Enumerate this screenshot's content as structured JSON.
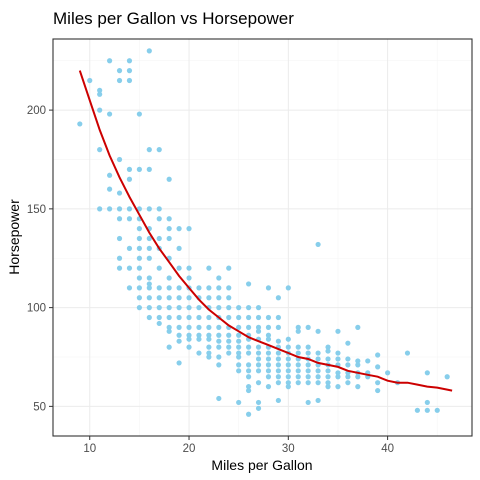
{
  "chart_data": {
    "type": "scatter",
    "title": "Miles per Gallon vs Horsepower",
    "xlabel": "Miles per Gallon",
    "ylabel": "Horsepower",
    "xlim": [
      6.3,
      48.5
    ],
    "ylim": [
      35,
      236
    ],
    "x_ticks": [
      10,
      20,
      30,
      40
    ],
    "y_ticks": [
      50,
      100,
      150,
      200
    ],
    "grid": true,
    "point_color": "#87CEEB",
    "line_color": "#CC0000",
    "points": [
      [
        9,
        193
      ],
      [
        10,
        215
      ],
      [
        11,
        200
      ],
      [
        11,
        210
      ],
      [
        11,
        208
      ],
      [
        12,
        225
      ],
      [
        13,
        220
      ],
      [
        13,
        215
      ],
      [
        14,
        225
      ],
      [
        14,
        215
      ],
      [
        14,
        220
      ],
      [
        16,
        230
      ],
      [
        15,
        198
      ],
      [
        12,
        198
      ],
      [
        11,
        180
      ],
      [
        13,
        175
      ],
      [
        14,
        170
      ],
      [
        12,
        167
      ],
      [
        12,
        160
      ],
      [
        13,
        158
      ],
      [
        14,
        165
      ],
      [
        15,
        170
      ],
      [
        16,
        180
      ],
      [
        17,
        180
      ],
      [
        16,
        170
      ],
      [
        18,
        165
      ],
      [
        11,
        150
      ],
      [
        12,
        150
      ],
      [
        13,
        150
      ],
      [
        14,
        150
      ],
      [
        15,
        150
      ],
      [
        16,
        150
      ],
      [
        17,
        150
      ],
      [
        13,
        145
      ],
      [
        14,
        145
      ],
      [
        15,
        145
      ],
      [
        17,
        145
      ],
      [
        18,
        145
      ],
      [
        15,
        140
      ],
      [
        16,
        140
      ],
      [
        18,
        140
      ],
      [
        19,
        140
      ],
      [
        20,
        140
      ],
      [
        13,
        135
      ],
      [
        15,
        135
      ],
      [
        16,
        135
      ],
      [
        17,
        135
      ],
      [
        18,
        135
      ],
      [
        14,
        130
      ],
      [
        15,
        130
      ],
      [
        16,
        130
      ],
      [
        17,
        130
      ],
      [
        19,
        130
      ],
      [
        13,
        125
      ],
      [
        15,
        125
      ],
      [
        16,
        125
      ],
      [
        18,
        125
      ],
      [
        13,
        120
      ],
      [
        14,
        120
      ],
      [
        15,
        120
      ],
      [
        17,
        120
      ],
      [
        19,
        120
      ],
      [
        20,
        120
      ],
      [
        15,
        115
      ],
      [
        16,
        115
      ],
      [
        18,
        115
      ],
      [
        20,
        115
      ],
      [
        16,
        112
      ],
      [
        14,
        110
      ],
      [
        15,
        110
      ],
      [
        16,
        110
      ],
      [
        17,
        110
      ],
      [
        18,
        110
      ],
      [
        19,
        110
      ],
      [
        20,
        110
      ],
      [
        21,
        110
      ],
      [
        22,
        110
      ],
      [
        23,
        110
      ],
      [
        24,
        110
      ],
      [
        15,
        105
      ],
      [
        16,
        105
      ],
      [
        17,
        105
      ],
      [
        18,
        105
      ],
      [
        19,
        105
      ],
      [
        20,
        105
      ],
      [
        21,
        105
      ],
      [
        22,
        105
      ],
      [
        23,
        105
      ],
      [
        24,
        105
      ],
      [
        15,
        100
      ],
      [
        16,
        100
      ],
      [
        17,
        100
      ],
      [
        18,
        100
      ],
      [
        19,
        100
      ],
      [
        20,
        100
      ],
      [
        21,
        100
      ],
      [
        22,
        100
      ],
      [
        23,
        100
      ],
      [
        24,
        100
      ],
      [
        25,
        100
      ],
      [
        26,
        100
      ],
      [
        27,
        100
      ],
      [
        23,
        115
      ],
      [
        22,
        120
      ],
      [
        24,
        120
      ],
      [
        26,
        112
      ],
      [
        28,
        110
      ],
      [
        30,
        110
      ],
      [
        29,
        105
      ],
      [
        33,
        132
      ],
      [
        16,
        95
      ],
      [
        17,
        95
      ],
      [
        18,
        95
      ],
      [
        19,
        95
      ],
      [
        20,
        95
      ],
      [
        21,
        95
      ],
      [
        22,
        95
      ],
      [
        23,
        95
      ],
      [
        24,
        95
      ],
      [
        25,
        95
      ],
      [
        26,
        95
      ],
      [
        27,
        95
      ],
      [
        28,
        95
      ],
      [
        29,
        95
      ],
      [
        17,
        92
      ],
      [
        18,
        90
      ],
      [
        19,
        90
      ],
      [
        20,
        90
      ],
      [
        21,
        90
      ],
      [
        22,
        90
      ],
      [
        23,
        90
      ],
      [
        24,
        90
      ],
      [
        25,
        90
      ],
      [
        26,
        90
      ],
      [
        27,
        90
      ],
      [
        28,
        90
      ],
      [
        29,
        90
      ],
      [
        31,
        90
      ],
      [
        18,
        88
      ],
      [
        19,
        86
      ],
      [
        20,
        86
      ],
      [
        21,
        86
      ],
      [
        22,
        86
      ],
      [
        23,
        86
      ],
      [
        24,
        86
      ],
      [
        25,
        86
      ],
      [
        26,
        86
      ],
      [
        27,
        88
      ],
      [
        28,
        86
      ],
      [
        31,
        88
      ],
      [
        32,
        90
      ],
      [
        19,
        83
      ],
      [
        20,
        84
      ],
      [
        21,
        84
      ],
      [
        22,
        84
      ],
      [
        23,
        83
      ],
      [
        24,
        83
      ],
      [
        25,
        83
      ],
      [
        26,
        84
      ],
      [
        27,
        84
      ],
      [
        28,
        84
      ],
      [
        29,
        83
      ],
      [
        30,
        84
      ],
      [
        33,
        88
      ],
      [
        35,
        88
      ],
      [
        37,
        90
      ],
      [
        18,
        80
      ],
      [
        20,
        80
      ],
      [
        22,
        80
      ],
      [
        23,
        80
      ],
      [
        24,
        80
      ],
      [
        25,
        80
      ],
      [
        26,
        80
      ],
      [
        27,
        80
      ],
      [
        28,
        80
      ],
      [
        29,
        80
      ],
      [
        30,
        80
      ],
      [
        31,
        80
      ],
      [
        32,
        80
      ],
      [
        34,
        80
      ],
      [
        36,
        82
      ],
      [
        21,
        77
      ],
      [
        22,
        77
      ],
      [
        24,
        77
      ],
      [
        25,
        77
      ],
      [
        26,
        77
      ],
      [
        27,
        77
      ],
      [
        28,
        77
      ],
      [
        29,
        77
      ],
      [
        30,
        77
      ],
      [
        31,
        77
      ],
      [
        32,
        77
      ],
      [
        33,
        77
      ],
      [
        34,
        78
      ],
      [
        35,
        77
      ],
      [
        39,
        76
      ],
      [
        42,
        77
      ],
      [
        23,
        75
      ],
      [
        25,
        75
      ],
      [
        27,
        74
      ],
      [
        28,
        74
      ],
      [
        29,
        74
      ],
      [
        30,
        74
      ],
      [
        31,
        74
      ],
      [
        32,
        74
      ],
      [
        33,
        74
      ],
      [
        34,
        74
      ],
      [
        35,
        74
      ],
      [
        36,
        74
      ],
      [
        37,
        73
      ],
      [
        38,
        73
      ],
      [
        23,
        71
      ],
      [
        25,
        71
      ],
      [
        26,
        71
      ],
      [
        27,
        71
      ],
      [
        28,
        71
      ],
      [
        29,
        71
      ],
      [
        30,
        71
      ],
      [
        31,
        71
      ],
      [
        32,
        71
      ],
      [
        33,
        71
      ],
      [
        34,
        71
      ],
      [
        35,
        71
      ],
      [
        36,
        71
      ],
      [
        37,
        71
      ],
      [
        39,
        70
      ],
      [
        25,
        68
      ],
      [
        26,
        68
      ],
      [
        27,
        68
      ],
      [
        28,
        68
      ],
      [
        29,
        68
      ],
      [
        30,
        68
      ],
      [
        31,
        68
      ],
      [
        32,
        68
      ],
      [
        33,
        68
      ],
      [
        34,
        68
      ],
      [
        35,
        67
      ],
      [
        36,
        67
      ],
      [
        37,
        67
      ],
      [
        38,
        67
      ],
      [
        40,
        67
      ],
      [
        44,
        67
      ],
      [
        46,
        65
      ],
      [
        26,
        65
      ],
      [
        28,
        65
      ],
      [
        29,
        65
      ],
      [
        30,
        65
      ],
      [
        31,
        65
      ],
      [
        32,
        65
      ],
      [
        33,
        65
      ],
      [
        34,
        65
      ],
      [
        35,
        65
      ],
      [
        36,
        65
      ],
      [
        37,
        65
      ],
      [
        38,
        65
      ],
      [
        27,
        62
      ],
      [
        29,
        62
      ],
      [
        30,
        62
      ],
      [
        31,
        62
      ],
      [
        32,
        62
      ],
      [
        33,
        62
      ],
      [
        34,
        62
      ],
      [
        36,
        62
      ],
      [
        39,
        62
      ],
      [
        41,
        62
      ],
      [
        26,
        60
      ],
      [
        28,
        60
      ],
      [
        30,
        60
      ],
      [
        34,
        60
      ],
      [
        35,
        60
      ],
      [
        39,
        58
      ],
      [
        23,
        54
      ],
      [
        25,
        52
      ],
      [
        27,
        52
      ],
      [
        29,
        53
      ],
      [
        33,
        53
      ],
      [
        32,
        52
      ],
      [
        27,
        49
      ],
      [
        26,
        46
      ],
      [
        43,
        48
      ],
      [
        44,
        48
      ],
      [
        45,
        48
      ],
      [
        44,
        52
      ],
      [
        19,
        72
      ],
      [
        22,
        75
      ],
      [
        26,
        58
      ],
      [
        37,
        60
      ]
    ],
    "trend_line": [
      [
        9,
        220
      ],
      [
        10,
        205
      ],
      [
        11,
        190
      ],
      [
        12,
        177
      ],
      [
        13,
        166
      ],
      [
        14,
        156
      ],
      [
        15,
        147
      ],
      [
        16,
        138
      ],
      [
        17,
        130
      ],
      [
        18,
        123
      ],
      [
        19,
        116
      ],
      [
        20,
        110
      ],
      [
        21,
        104
      ],
      [
        22,
        99
      ],
      [
        23,
        95
      ],
      [
        24,
        91
      ],
      [
        25,
        88
      ],
      [
        26,
        85
      ],
      [
        27,
        83
      ],
      [
        28,
        81
      ],
      [
        29,
        79
      ],
      [
        30,
        77
      ],
      [
        31,
        75
      ],
      [
        32,
        74
      ],
      [
        33,
        72
      ],
      [
        34,
        71
      ],
      [
        35,
        70
      ],
      [
        36,
        68
      ],
      [
        37,
        67
      ],
      [
        38,
        66
      ],
      [
        39,
        65
      ],
      [
        40,
        63
      ],
      [
        41,
        62
      ],
      [
        42,
        62
      ],
      [
        43,
        61
      ],
      [
        44,
        60
      ],
      [
        45,
        59.5
      ],
      [
        46,
        58.5
      ],
      [
        46.5,
        58
      ]
    ]
  }
}
